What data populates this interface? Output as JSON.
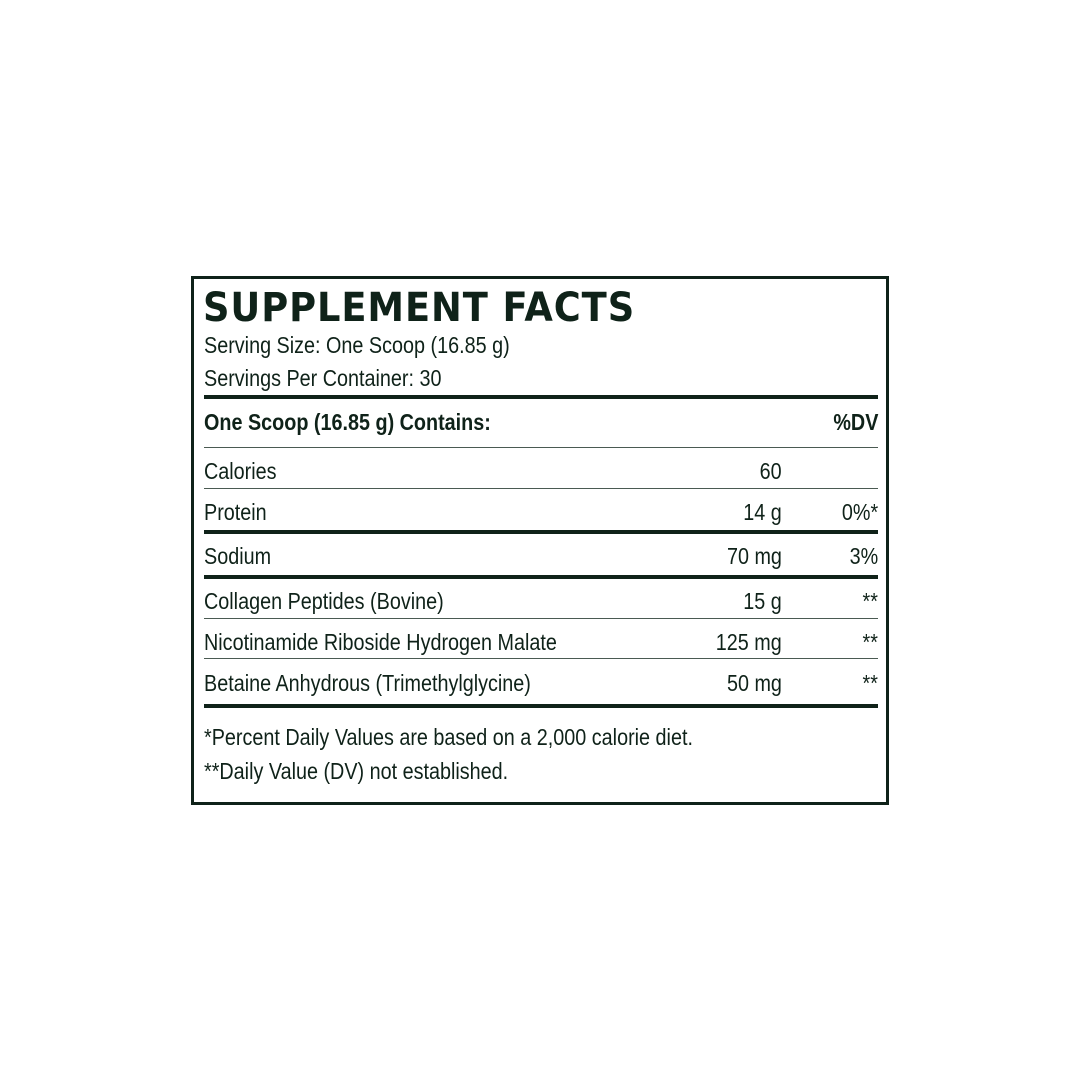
{
  "title": "SUPPLEMENT FACTS",
  "serving_size": "Serving Size: One Scoop (16.85 g)",
  "servings_per_container": "Servings Per Container: 30",
  "header": {
    "contains": "One Scoop (16.85 g) Contains:",
    "dv": "%DV"
  },
  "rows": [
    {
      "name": "Calories",
      "amount": "60",
      "dv": ""
    },
    {
      "name": "Protein",
      "amount": "14 g",
      "dv": "0%*"
    },
    {
      "name": "Sodium",
      "amount": "70 mg",
      "dv": "3%"
    },
    {
      "name": "Collagen Peptides (Bovine)",
      "amount": "15 g",
      "dv": "**"
    },
    {
      "name": "Nicotinamide Riboside Hydrogen Malate",
      "amount": "125 mg",
      "dv": "**"
    },
    {
      "name": "Betaine Anhydrous (Trimethylglycine)",
      "amount": "50 mg",
      "dv": "**"
    }
  ],
  "footnotes": [
    "*Percent Daily Values are based on a 2,000 calorie diet.",
    "**Daily Value (DV) not established."
  ],
  "colors": {
    "ink": "#0f2219",
    "background": "#ffffff"
  }
}
